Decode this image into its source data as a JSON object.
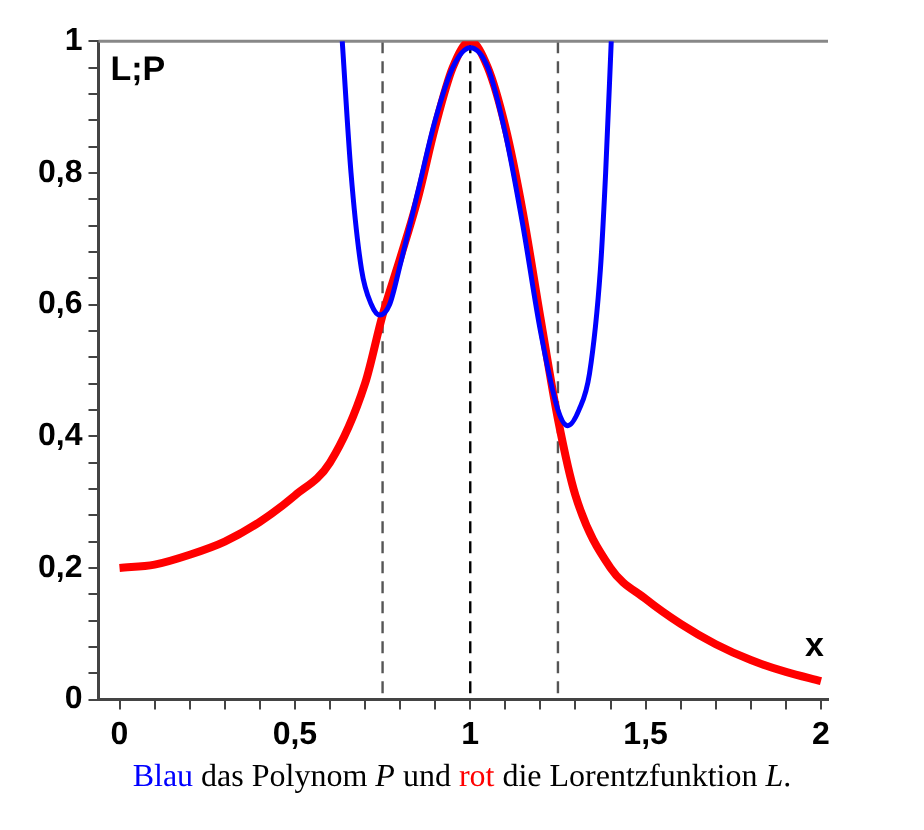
{
  "chart_data": {
    "type": "line",
    "xlabel": "x",
    "ylabel": "L;P",
    "annotations": [
      "Blau das Polynom P und rot die Lorentzfunktion L."
    ],
    "series": [
      {
        "color": "#0000ff",
        "x": [
          0.635,
          0.66,
          0.69,
          0.718,
          0.742,
          0.77,
          0.8,
          0.85,
          0.9,
          0.95,
          1.0,
          1.05,
          1.1,
          1.15,
          1.2,
          1.25,
          1.278,
          1.31,
          1.34,
          1.371,
          1.386,
          1.402
        ],
        "values": [
          1,
          0.8,
          0.653,
          0.6,
          0.584,
          0.6,
          0.66,
          0.77,
          0.88,
          0.96,
          0.99,
          0.96,
          0.86,
          0.72,
          0.56,
          0.44,
          0.416,
          0.44,
          0.495,
          0.653,
          0.8,
          1
        ]
      },
      {
        "color": "#ff0000",
        "x": [
          0,
          0.1,
          0.2,
          0.3,
          0.4,
          0.5,
          0.6,
          0.7,
          0.75,
          0.8,
          0.85,
          0.9,
          0.95,
          1.0,
          1.05,
          1.1,
          1.15,
          1.2,
          1.25,
          1.3,
          1.4,
          1.5,
          1.6,
          1.7,
          1.8,
          1.9,
          2.0
        ],
        "values": [
          0.2,
          0.205,
          0.22,
          0.24,
          0.27,
          0.31,
          0.36,
          0.48,
          0.584,
          0.67,
          0.76,
          0.87,
          0.96,
          1,
          0.96,
          0.87,
          0.74,
          0.58,
          0.426,
          0.31,
          0.2,
          0.153,
          0.115,
          0.084,
          0.06,
          0.042,
          0.028
        ]
      }
    ],
    "ref_lines": [
      {
        "axis": "x",
        "value": 0.75,
        "line_style": "dashed",
        "color": "#555555"
      },
      {
        "axis": "x",
        "value": 1,
        "line_style": "dashed",
        "color": "#000000"
      },
      {
        "axis": "x",
        "value": 1.25,
        "line_style": "dashed",
        "color": "#555555"
      }
    ],
    "xlim": [
      -0.06,
      2.02
    ],
    "ylim": [
      0,
      1
    ],
    "xticks": [
      {
        "value": 0,
        "label": "0"
      },
      {
        "value": 0.1,
        "label": null
      },
      {
        "value": 0.2,
        "label": null
      },
      {
        "value": 0.3,
        "label": null
      },
      {
        "value": 0.4,
        "label": null
      },
      {
        "value": 0.5,
        "label": "0,5"
      },
      {
        "value": 0.6,
        "label": null
      },
      {
        "value": 0.7,
        "label": null
      },
      {
        "value": 0.8,
        "label": null
      },
      {
        "value": 0.9,
        "label": null
      },
      {
        "value": 1,
        "label": "1"
      },
      {
        "value": 1.1,
        "label": null
      },
      {
        "value": 1.2,
        "label": null
      },
      {
        "value": 1.3,
        "label": null
      },
      {
        "value": 1.4,
        "label": null
      },
      {
        "value": 1.5,
        "label": "1,5"
      },
      {
        "value": 1.6,
        "label": null
      },
      {
        "value": 1.7,
        "label": null
      },
      {
        "value": 1.8,
        "label": null
      },
      {
        "value": 1.9,
        "label": null
      },
      {
        "value": 2,
        "label": "2"
      }
    ],
    "yticks": [
      {
        "value": 0,
        "label": "0"
      },
      {
        "value": 0.04,
        "label": null
      },
      {
        "value": 0.08,
        "label": null
      },
      {
        "value": 0.12,
        "label": null
      },
      {
        "value": 0.16,
        "label": null
      },
      {
        "value": 0.2,
        "label": "0,2"
      },
      {
        "value": 0.24,
        "label": null
      },
      {
        "value": 0.28,
        "label": null
      },
      {
        "value": 0.32,
        "label": null
      },
      {
        "value": 0.36,
        "label": null
      },
      {
        "value": 0.4,
        "label": "0,4"
      },
      {
        "value": 0.44,
        "label": null
      },
      {
        "value": 0.48,
        "label": null
      },
      {
        "value": 0.52,
        "label": null
      },
      {
        "value": 0.56,
        "label": null
      },
      {
        "value": 0.6,
        "label": "0,6"
      },
      {
        "value": 0.64,
        "label": null
      },
      {
        "value": 0.68,
        "label": null
      },
      {
        "value": 0.72,
        "label": null
      },
      {
        "value": 0.76,
        "label": null
      },
      {
        "value": 0.8,
        "label": "0,8"
      },
      {
        "value": 0.84,
        "label": null
      },
      {
        "value": 0.88,
        "label": null
      },
      {
        "value": 0.92,
        "label": null
      },
      {
        "value": 0.96,
        "label": null
      },
      {
        "value": 1,
        "label": "1"
      }
    ],
    "grid": false,
    "legend": false,
    "marker": "none",
    "line_style": "solid"
  }
}
